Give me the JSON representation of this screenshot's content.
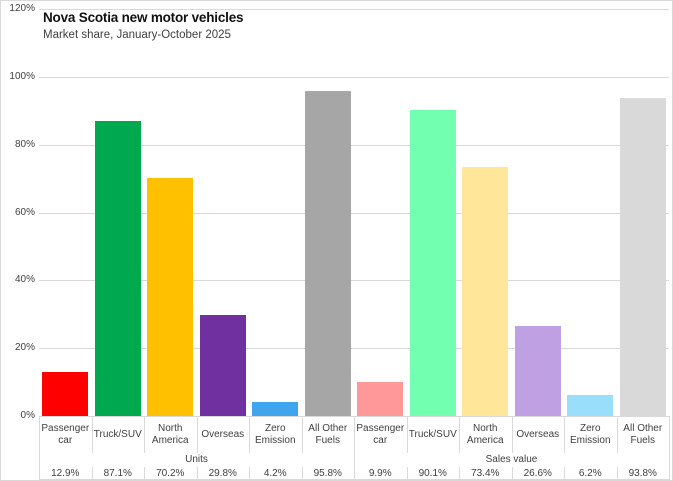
{
  "chart_data": {
    "type": "bar",
    "title": "Nova Scotia new motor vehicles",
    "subtitle": "Market share, January-October 2025",
    "xlabel": "",
    "ylabel": "",
    "ylim": [
      0,
      120
    ],
    "yticks": [
      "0%",
      "20%",
      "40%",
      "60%",
      "80%",
      "100%",
      "120%"
    ],
    "ytick_values": [
      0,
      20,
      40,
      60,
      80,
      100,
      120
    ],
    "grid": true,
    "legend": "none",
    "groups": [
      {
        "label": "Units",
        "categories": [
          "Passenger car",
          "Truck/SUV",
          "North America",
          "Overseas",
          "Zero Emission",
          "All Other Fuels"
        ],
        "values": [
          12.9,
          87.1,
          70.2,
          29.8,
          4.2,
          95.8
        ],
        "value_labels": [
          "12.9%",
          "87.1%",
          "70.2%",
          "29.8%",
          "4.2%",
          "95.8%"
        ],
        "colors": [
          "#FF0000",
          "#00A950",
          "#FFC000",
          "#7030A0",
          "#41A5EE",
          "#A6A6A6"
        ]
      },
      {
        "label": "Sales value",
        "categories": [
          "Passenger car",
          "Truck/SUV",
          "North America",
          "Overseas",
          "Zero Emission",
          "All Other Fuels"
        ],
        "values": [
          9.9,
          90.1,
          73.4,
          26.6,
          6.2,
          93.8
        ],
        "value_labels": [
          "9.9%",
          "90.1%",
          "73.4%",
          "26.6%",
          "6.2%",
          "93.8%"
        ],
        "colors": [
          "#FF9999",
          "#73FFB0",
          "#FFE699",
          "#BFA0E2",
          "#99DFFB",
          "#D9D9D9"
        ]
      }
    ],
    "colors_meaning": {
      "gridline": "#d9d9d9",
      "axis_text": "#404040",
      "title_text": "#111111"
    }
  }
}
